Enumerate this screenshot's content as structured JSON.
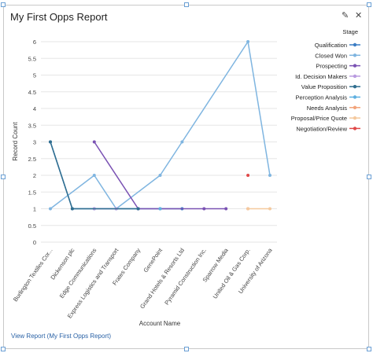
{
  "widget": {
    "title": "My First Opps Report",
    "view_link": "View Report (My First Opps Report)",
    "edit_icon": "pencil-icon",
    "close_icon": "close-icon"
  },
  "chart_data": {
    "type": "line",
    "xlabel": "Account Name",
    "ylabel": "Record Count",
    "ylim": [
      0,
      6
    ],
    "yticks": [
      "0",
      "0.5",
      "1",
      "1.5",
      "2",
      "2.5",
      "3",
      "3.5",
      "4",
      "4.5",
      "5",
      "5.5",
      "6"
    ],
    "grid": true,
    "legend_title": "Stage",
    "legend_position": "right",
    "categories": [
      "Burlington Textiles Cor...",
      "Dickenson plc",
      "Edge Communications",
      "Express Logistics and Transport",
      "Frates Company",
      "GenePoint",
      "Grand Hotels & Resorts Ltd",
      "Pyramid Construction Inc.",
      "Sparrow Media",
      "United Oil & Gas Corp.",
      "University of Arizona"
    ],
    "series": [
      {
        "name": "Qualification",
        "color": "#3b7dc4",
        "values": [
          3,
          1,
          1,
          1,
          1,
          1,
          1,
          null,
          null,
          null,
          null
        ]
      },
      {
        "name": "Closed Won",
        "color": "#7fb5e0",
        "values": [
          1,
          null,
          2,
          1,
          null,
          2,
          3,
          null,
          null,
          6,
          2
        ]
      },
      {
        "name": "Prospecting",
        "color": "#7a52b3",
        "values": [
          null,
          null,
          3,
          null,
          1,
          null,
          null,
          1,
          1,
          null,
          null
        ]
      },
      {
        "name": "Id. Decision Makers",
        "color": "#b99be0",
        "values": [
          null,
          null,
          1,
          1,
          null,
          null,
          null,
          null,
          null,
          null,
          null
        ]
      },
      {
        "name": "Value Proposition",
        "color": "#2f6e8f",
        "values": [
          3,
          1,
          null,
          null,
          1,
          null,
          null,
          null,
          null,
          null,
          null
        ]
      },
      {
        "name": "Perception Analysis",
        "color": "#5fb0e0",
        "values": [
          null,
          null,
          null,
          null,
          null,
          1,
          null,
          null,
          null,
          null,
          null
        ]
      },
      {
        "name": "Needs Analysis",
        "color": "#f2a37a",
        "values": [
          null,
          null,
          null,
          null,
          null,
          null,
          null,
          null,
          null,
          1,
          null
        ]
      },
      {
        "name": "Proposal/Price Quote",
        "color": "#f5c99e",
        "values": [
          null,
          null,
          null,
          null,
          null,
          null,
          null,
          null,
          null,
          1,
          1
        ]
      },
      {
        "name": "Negotiation/Review",
        "color": "#e04848",
        "values": [
          null,
          null,
          null,
          null,
          null,
          null,
          null,
          null,
          null,
          2,
          null
        ]
      }
    ]
  }
}
